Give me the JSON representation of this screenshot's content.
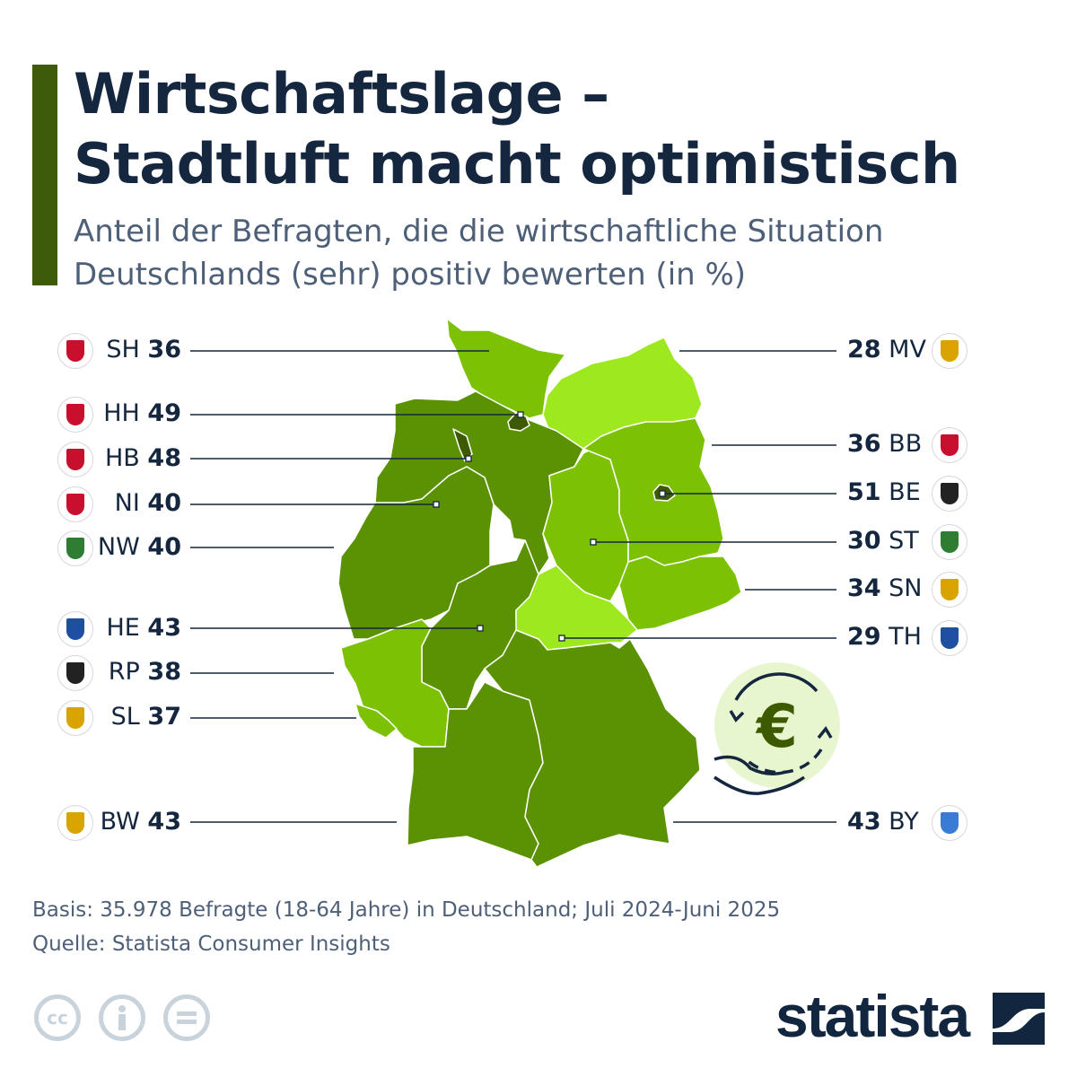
{
  "header": {
    "title_line1": "Wirtschaftslage –",
    "title_line2": "Stadtluft macht optimistisch",
    "subtitle_line1": "Anteil der Befragten, die die wirtschaftliche Situation",
    "subtitle_line2": "Deutschlands (sehr) positiv bewerten (in %)"
  },
  "colors": {
    "dark": "#5b9203",
    "medium": "#7cc103",
    "light": "#9de81e",
    "city": "#3d5a00",
    "navy": "#15263f",
    "accent_bar": "#3d5b0a"
  },
  "states": {
    "SH": {
      "code": "SH",
      "value": "36",
      "coa_color": "#c8102e"
    },
    "HH": {
      "code": "HH",
      "value": "49",
      "coa_color": "#c8102e"
    },
    "HB": {
      "code": "HB",
      "value": "48",
      "coa_color": "#c8102e"
    },
    "NI": {
      "code": "NI",
      "value": "40",
      "coa_color": "#c8102e"
    },
    "NW": {
      "code": "NW",
      "value": "40",
      "coa_color": "#2e7d32"
    },
    "HE": {
      "code": "HE",
      "value": "43",
      "coa_color": "#1e4fa0"
    },
    "RP": {
      "code": "RP",
      "value": "38",
      "coa_color": "#222222"
    },
    "SL": {
      "code": "SL",
      "value": "37",
      "coa_color": "#d9a300"
    },
    "BW": {
      "code": "BW",
      "value": "43",
      "coa_color": "#d9a300"
    },
    "MV": {
      "code": "MV",
      "value": "28",
      "coa_color": "#d9a300"
    },
    "BB": {
      "code": "BB",
      "value": "36",
      "coa_color": "#c8102e"
    },
    "BE": {
      "code": "BE",
      "value": "51",
      "coa_color": "#222222"
    },
    "ST": {
      "code": "ST",
      "value": "30",
      "coa_color": "#2e7d32"
    },
    "SN": {
      "code": "SN",
      "value": "34",
      "coa_color": "#d9a300"
    },
    "TH": {
      "code": "TH",
      "value": "29",
      "coa_color": "#1e4fa0"
    },
    "BY": {
      "code": "BY",
      "value": "43",
      "coa_color": "#3a7bd5"
    }
  },
  "footer": {
    "basis": "Basis: 35.978 Befragte (18-64 Jahre) in Deutschland; Juli 2024-Juni 2025",
    "source": "Quelle: Statista Consumer Insights",
    "cc_icon": "cc",
    "brand": "statista"
  }
}
